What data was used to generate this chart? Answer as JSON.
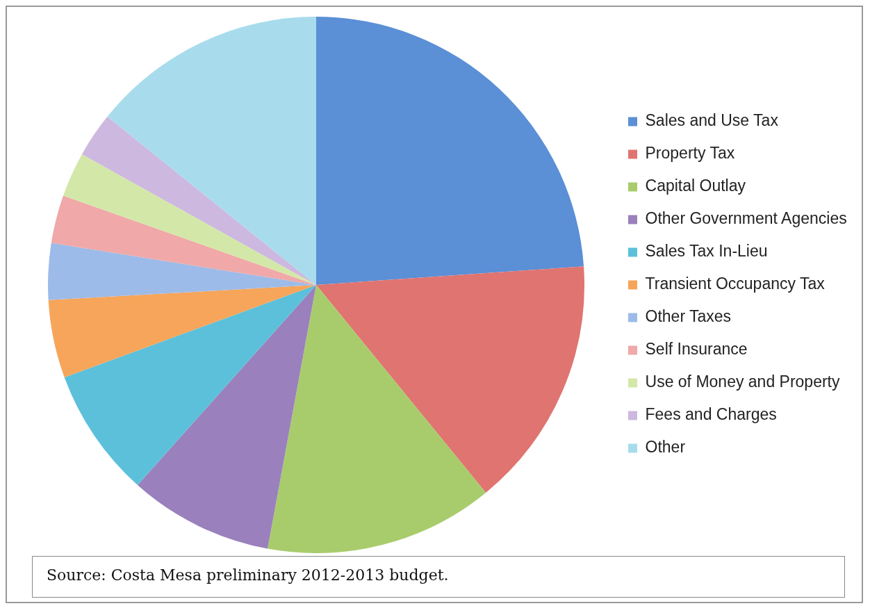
{
  "chart_data": {
    "type": "pie",
    "categories": [
      "Sales and Use Tax",
      "Property Tax",
      "Capital Outlay",
      "Other Government Agencies",
      "Sales Tax In-Lieu",
      "Transient Occupancy Tax",
      "Other Taxes",
      "Self Insurance",
      "Use of Money and Property",
      "Fees and Charges",
      "Other"
    ],
    "values": [
      23.9,
      15.2,
      13.8,
      8.7,
      7.8,
      4.7,
      3.4,
      2.9,
      2.7,
      2.7,
      14.2
    ],
    "colors": [
      "#5b8fd6",
      "#e07470",
      "#a8cc6c",
      "#9a80bc",
      "#5cc0da",
      "#f6a55a",
      "#9dbbe8",
      "#f0a8a8",
      "#d3e8a8",
      "#cdb8e0",
      "#a8dced"
    ],
    "legend": "right",
    "annotations": [
      "Source: Costa Mesa preliminary 2012-2013 budget."
    ]
  }
}
